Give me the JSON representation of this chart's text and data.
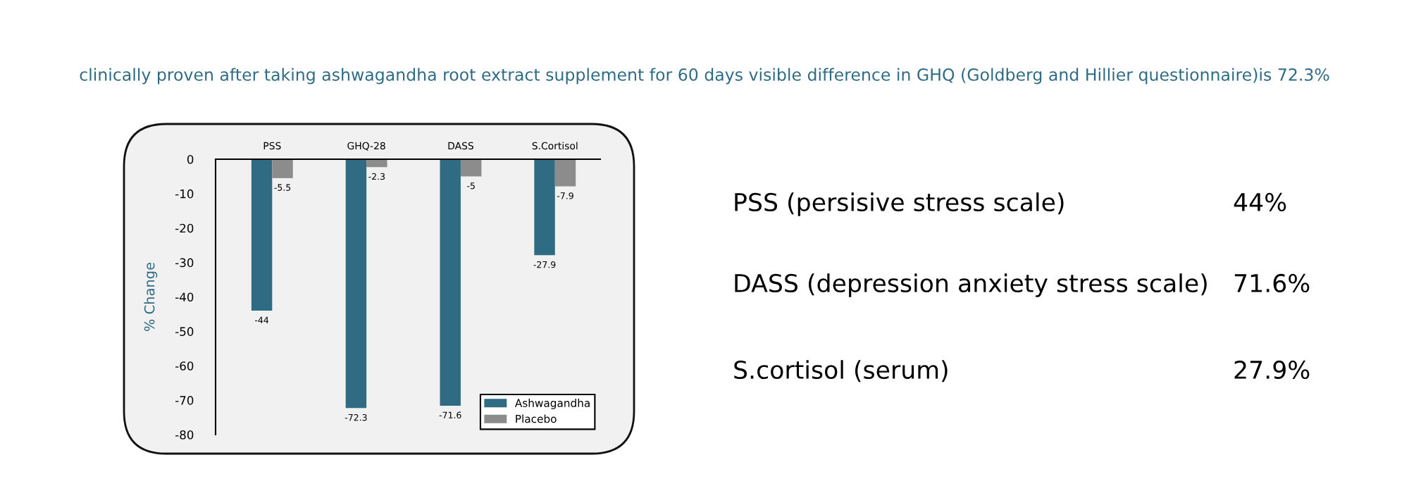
{
  "chart_data": [
    {
      "type": "bar",
      "title": "clinically proven after taking ashwagandha root extract supplement for 60 days visible difference in GHQ (Goldberg and Hillier questionnaire)is 72.3%",
      "categories": [
        "PSS",
        "GHQ-28",
        "DASS",
        "S.Cortisol"
      ],
      "series": [
        {
          "name": "Ashwagandha",
          "color": "#2f6b83",
          "values": [
            -44,
            -72.3,
            -71.6,
            -27.9
          ]
        },
        {
          "name": "Placebo",
          "color": "#8c8c8c",
          "values": [
            -5.5,
            -2.3,
            -5,
            -7.9
          ]
        }
      ],
      "ylabel": "% Change",
      "ylim": [
        -80,
        0
      ],
      "yticks": [
        0,
        -10,
        -20,
        -30,
        -40,
        -50,
        -60,
        -70,
        -80
      ],
      "data_labels": true,
      "legend": "bottom right",
      "grid": false
    },
    {
      "type": "other",
      "categories": [
        "PSS (persisive stress scale)",
        "DASS (depression anxiety stress scale)",
        "S.cortisol (serum)"
      ],
      "value_labels": [
        "44%",
        "71.6%",
        "27.9%"
      ]
    }
  ]
}
